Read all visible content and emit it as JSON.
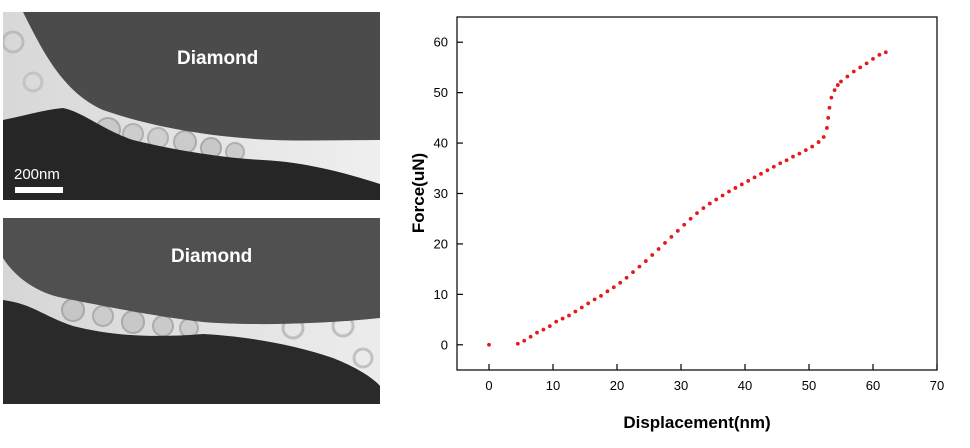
{
  "micrographs": [
    {
      "label": "Diamond",
      "scale_label": "200nm"
    },
    {
      "label": "Diamond"
    }
  ],
  "chart_data": {
    "type": "scatter",
    "xlabel": "Displacement(nm)",
    "ylabel": "Force(uN)",
    "xlim": [
      -5,
      70
    ],
    "ylim": [
      -5,
      65
    ],
    "xticks": [
      0,
      10,
      20,
      30,
      40,
      50,
      60,
      70
    ],
    "yticks": [
      0,
      10,
      20,
      30,
      40,
      50,
      60
    ],
    "grid": false,
    "legend": "none",
    "series": [
      {
        "color": "#e41a1c",
        "points": [
          [
            0.0,
            0.0
          ],
          [
            4.5,
            0.2
          ],
          [
            5.5,
            0.8
          ],
          [
            6.5,
            1.6
          ],
          [
            7.5,
            2.4
          ],
          [
            8.5,
            3.0
          ],
          [
            9.5,
            3.7
          ],
          [
            10.5,
            4.6
          ],
          [
            11.5,
            5.2
          ],
          [
            12.5,
            5.8
          ],
          [
            13.5,
            6.6
          ],
          [
            14.5,
            7.4
          ],
          [
            15.5,
            8.2
          ],
          [
            16.5,
            9.0
          ],
          [
            17.5,
            9.7
          ],
          [
            18.5,
            10.6
          ],
          [
            19.5,
            11.4
          ],
          [
            20.5,
            12.3
          ],
          [
            21.5,
            13.3
          ],
          [
            22.5,
            14.4
          ],
          [
            23.5,
            15.5
          ],
          [
            24.5,
            16.6
          ],
          [
            25.5,
            17.8
          ],
          [
            26.5,
            19.0
          ],
          [
            27.5,
            20.2
          ],
          [
            28.5,
            21.4
          ],
          [
            29.5,
            22.6
          ],
          [
            30.5,
            23.8
          ],
          [
            31.5,
            25.0
          ],
          [
            32.5,
            26.1
          ],
          [
            33.5,
            27.1
          ],
          [
            34.5,
            28.0
          ],
          [
            35.5,
            28.8
          ],
          [
            36.5,
            29.6
          ],
          [
            37.5,
            30.4
          ],
          [
            38.5,
            31.1
          ],
          [
            39.5,
            31.8
          ],
          [
            40.5,
            32.5
          ],
          [
            41.5,
            33.2
          ],
          [
            42.5,
            33.9
          ],
          [
            43.5,
            34.6
          ],
          [
            44.5,
            35.3
          ],
          [
            45.5,
            36.0
          ],
          [
            46.5,
            36.6
          ],
          [
            47.5,
            37.3
          ],
          [
            48.5,
            37.9
          ],
          [
            49.5,
            38.6
          ],
          [
            50.5,
            39.3
          ],
          [
            51.5,
            40.2
          ],
          [
            52.3,
            41.2
          ],
          [
            52.8,
            43.0
          ],
          [
            53.0,
            45.0
          ],
          [
            53.2,
            47.0
          ],
          [
            53.5,
            49.0
          ],
          [
            54.0,
            50.5
          ],
          [
            54.5,
            51.5
          ],
          [
            55.0,
            52.2
          ],
          [
            56.0,
            53.2
          ],
          [
            57.0,
            54.2
          ],
          [
            58.0,
            55.0
          ],
          [
            59.0,
            55.8
          ],
          [
            60.0,
            56.7
          ],
          [
            61.0,
            57.5
          ],
          [
            62.0,
            58.0
          ]
        ]
      }
    ]
  }
}
